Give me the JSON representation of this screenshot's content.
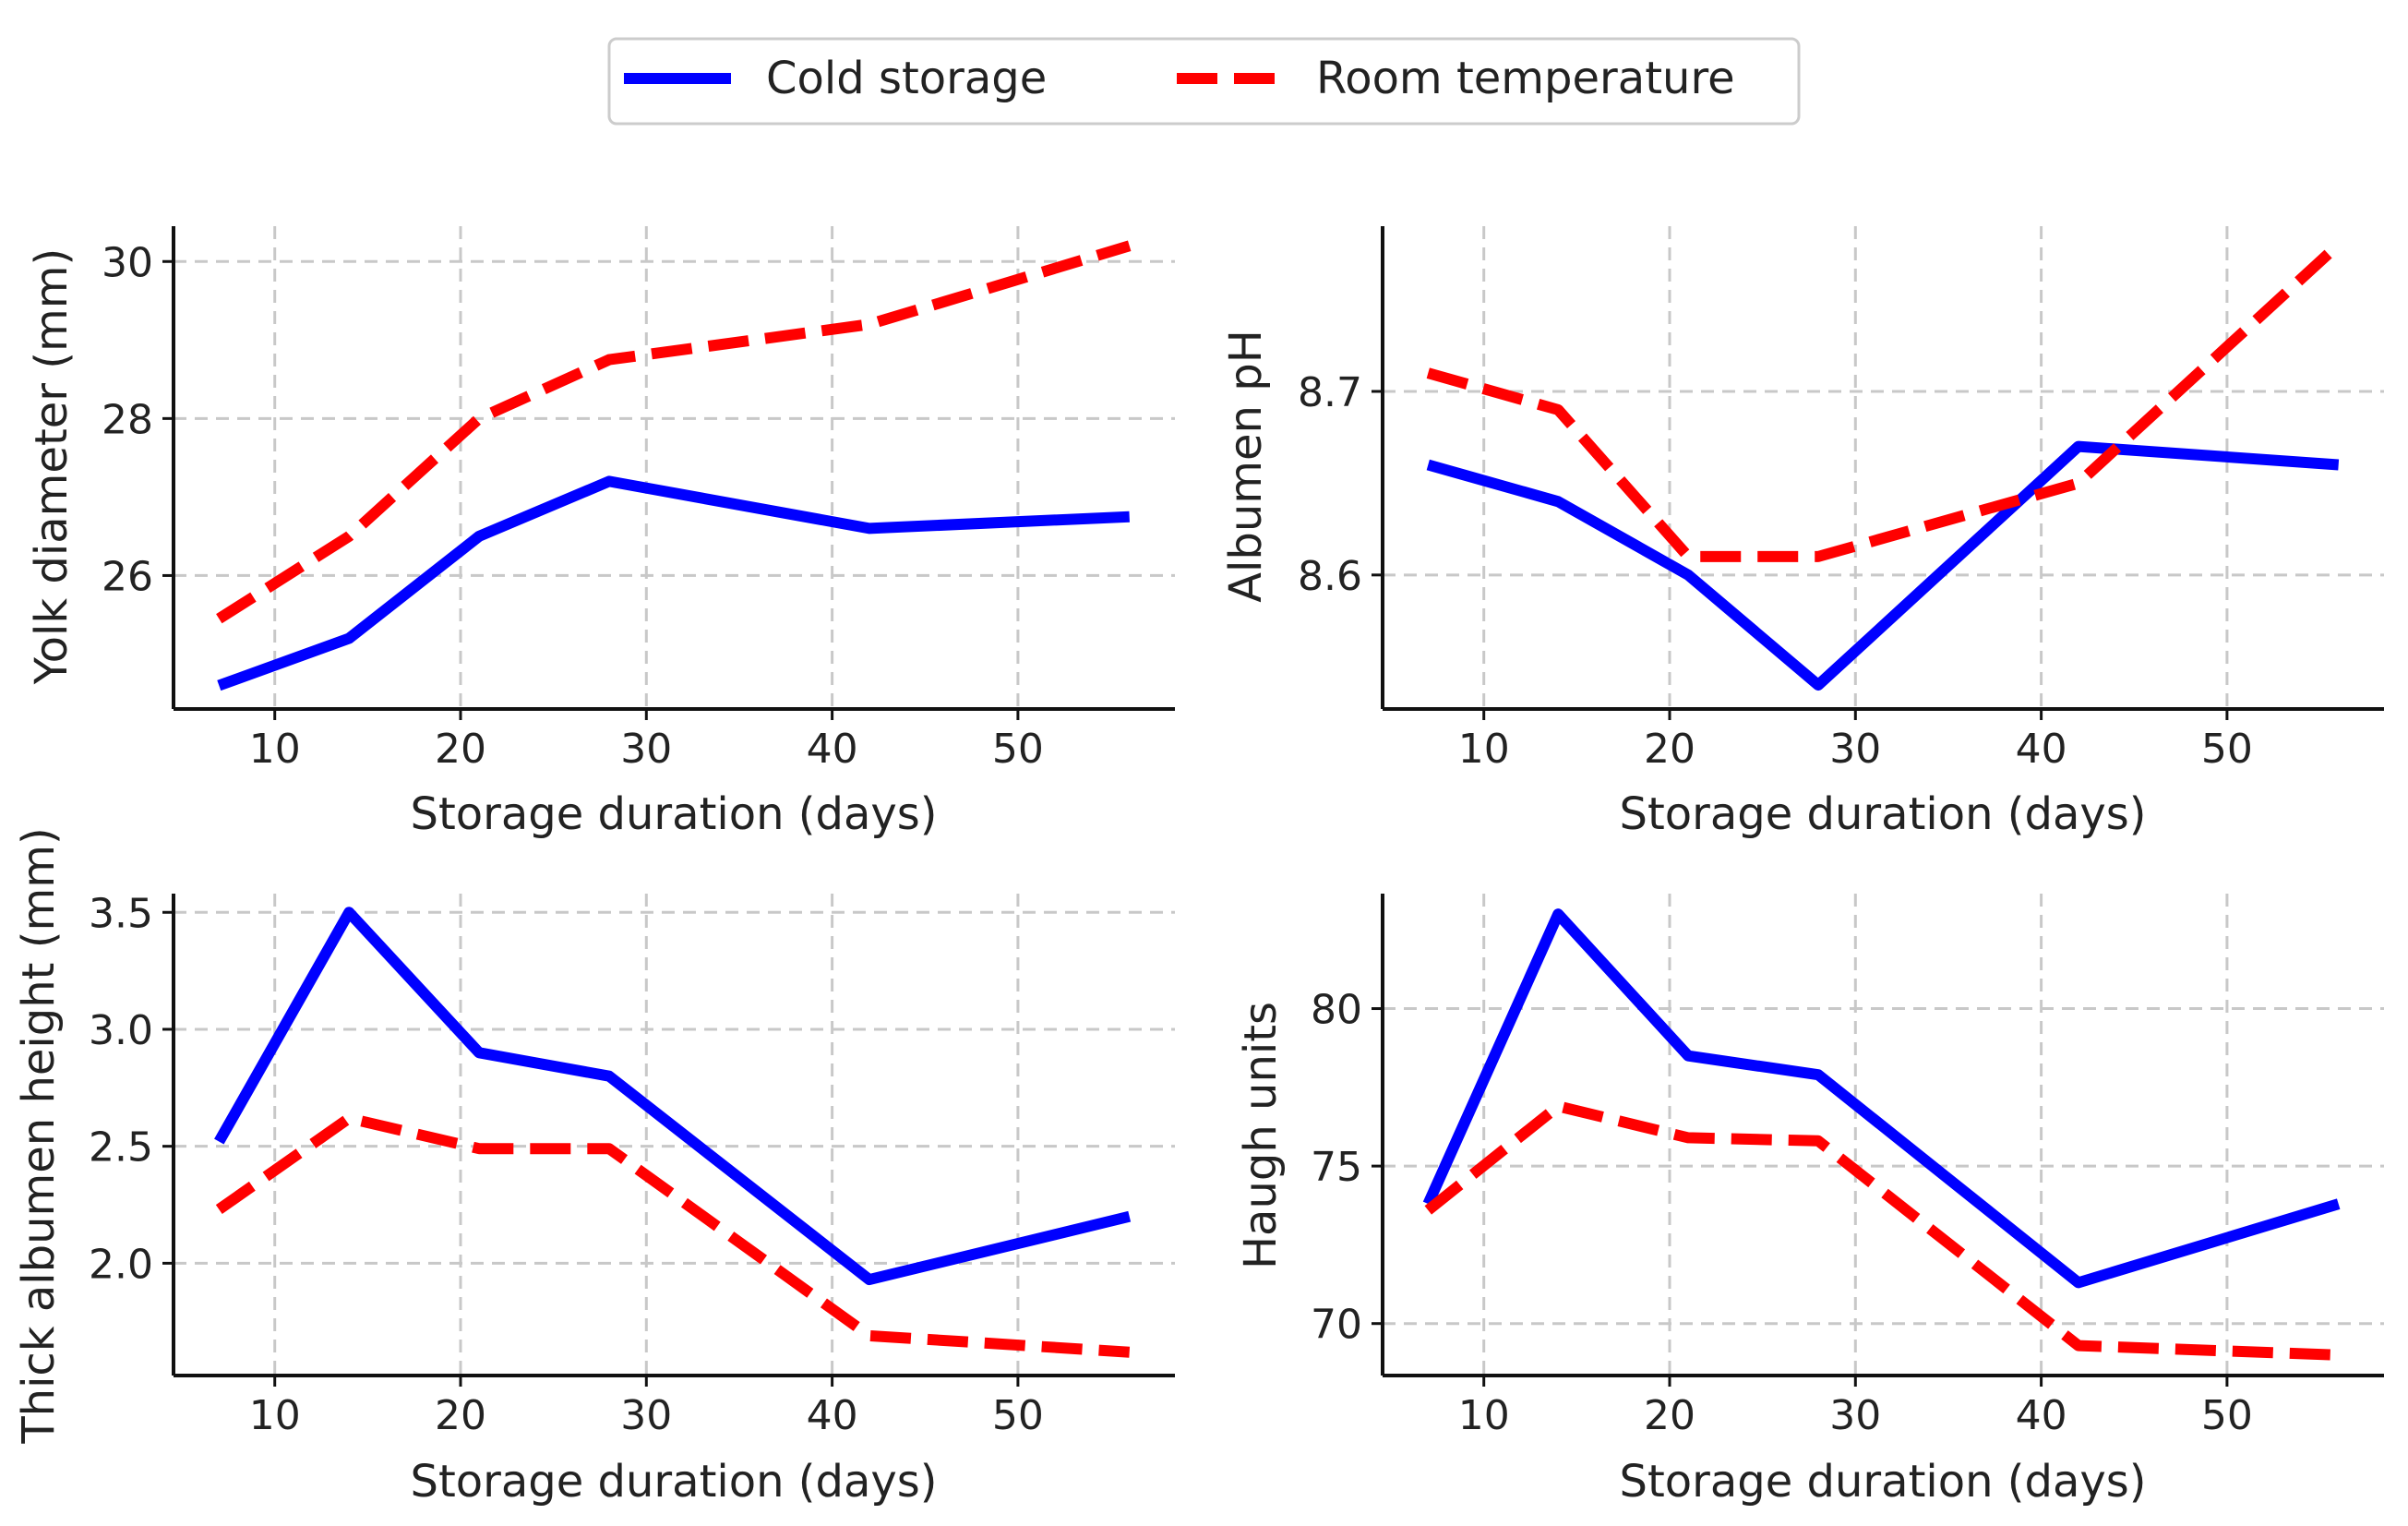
{
  "legend": {
    "items": [
      {
        "label": "Cold storage",
        "color": "#0000ff",
        "dash": "solid"
      },
      {
        "label": "Room temperature",
        "color": "#ff0000",
        "dash": "dashed"
      }
    ]
  },
  "chart_data": [
    {
      "type": "line",
      "title": "",
      "xlabel": "Storage duration (days)",
      "ylabel": "Yolk diameter (mm)",
      "x": [
        7,
        14,
        21,
        28,
        42,
        56
      ],
      "xticks": [
        10,
        20,
        30,
        40,
        50
      ],
      "xtick_labels": [
        "10",
        "20",
        "30",
        "40",
        "50"
      ],
      "yticks": [
        26,
        28,
        30
      ],
      "ytick_labels": [
        "26",
        "28",
        "30"
      ],
      "xlim": [
        4.55,
        58.45
      ],
      "ylim": [
        24.3,
        30.45
      ],
      "grid": true,
      "series": [
        {
          "name": "Cold storage",
          "color": "#0000ff",
          "dash": "solid",
          "values": [
            24.6,
            25.2,
            26.5,
            27.2,
            26.6,
            26.75
          ]
        },
        {
          "name": "Room temperature",
          "color": "#ff0000",
          "dash": "dashed",
          "values": [
            25.45,
            26.5,
            28.0,
            28.75,
            29.2,
            30.2
          ]
        }
      ]
    },
    {
      "type": "line",
      "title": "",
      "xlabel": "Storage duration (days)",
      "ylabel": "Albumen pH",
      "x": [
        7,
        14,
        21,
        28,
        42,
        56
      ],
      "xticks": [
        10,
        20,
        30,
        40,
        50
      ],
      "xtick_labels": [
        "10",
        "20",
        "30",
        "40",
        "50"
      ],
      "yticks": [
        8.6,
        8.7
      ],
      "ytick_labels": [
        "8.6",
        "8.7"
      ],
      "xlim": [
        4.55,
        58.45
      ],
      "ylim": [
        8.527,
        8.79
      ],
      "grid": true,
      "series": [
        {
          "name": "Cold storage",
          "color": "#0000ff",
          "dash": "solid",
          "values": [
            8.66,
            8.64,
            8.6,
            8.54,
            8.67,
            8.66
          ]
        },
        {
          "name": "Room temperature",
          "color": "#ff0000",
          "dash": "dashed",
          "values": [
            8.71,
            8.69,
            8.61,
            8.61,
            8.65,
            8.78
          ]
        }
      ]
    },
    {
      "type": "line",
      "title": "",
      "xlabel": "Storage duration (days)",
      "ylabel": "Thick albumen height (mm)",
      "x": [
        7,
        14,
        21,
        28,
        42,
        56
      ],
      "xticks": [
        10,
        20,
        30,
        40,
        50
      ],
      "xtick_labels": [
        "10",
        "20",
        "30",
        "40",
        "50"
      ],
      "yticks": [
        2.0,
        2.5,
        3.0,
        3.5
      ],
      "ytick_labels": [
        "2.0",
        "2.5",
        "3.0",
        "3.5"
      ],
      "xlim": [
        4.55,
        58.45
      ],
      "ylim": [
        1.52,
        3.58
      ],
      "grid": true,
      "series": [
        {
          "name": "Cold storage",
          "color": "#0000ff",
          "dash": "solid",
          "values": [
            2.52,
            3.5,
            2.9,
            2.8,
            1.93,
            2.2
          ]
        },
        {
          "name": "Room temperature",
          "color": "#ff0000",
          "dash": "dashed",
          "values": [
            2.23,
            2.62,
            2.49,
            2.49,
            1.69,
            1.62
          ]
        }
      ]
    },
    {
      "type": "line",
      "title": "",
      "xlabel": "Storage duration (days)",
      "ylabel": "Haugh units",
      "x": [
        7,
        14,
        21,
        28,
        42,
        56
      ],
      "xticks": [
        10,
        20,
        30,
        40,
        50
      ],
      "xtick_labels": [
        "10",
        "20",
        "30",
        "40",
        "50"
      ],
      "yticks": [
        70,
        75,
        80
      ],
      "ytick_labels": [
        "70",
        "75",
        "80"
      ],
      "xlim": [
        4.55,
        58.45
      ],
      "ylim": [
        68.35,
        83.65
      ],
      "grid": true,
      "series": [
        {
          "name": "Cold storage",
          "color": "#0000ff",
          "dash": "solid",
          "values": [
            73.8,
            83.0,
            78.5,
            77.9,
            71.3,
            73.8
          ]
        },
        {
          "name": "Room temperature",
          "color": "#ff0000",
          "dash": "dashed",
          "values": [
            73.6,
            76.9,
            75.9,
            75.8,
            69.3,
            69.0
          ]
        }
      ]
    }
  ]
}
